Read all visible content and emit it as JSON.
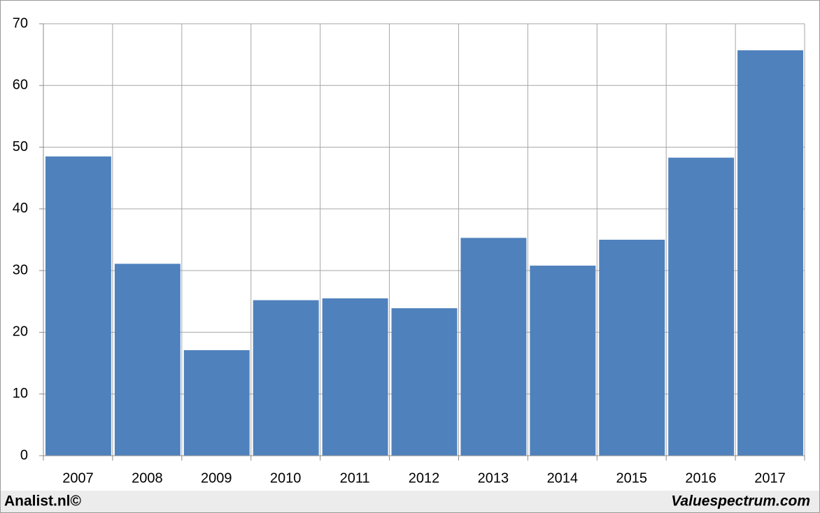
{
  "chart_data": {
    "type": "bar",
    "categories": [
      "2007",
      "2008",
      "2009",
      "2010",
      "2011",
      "2012",
      "2013",
      "2014",
      "2015",
      "2016",
      "2017"
    ],
    "values": [
      48.5,
      31.1,
      17.1,
      25.2,
      25.5,
      23.9,
      35.3,
      30.8,
      35.0,
      48.3,
      65.7
    ],
    "color": "#4f81bd",
    "ylim": [
      0,
      70
    ],
    "yticks": [
      0,
      10,
      20,
      30,
      40,
      50,
      60,
      70
    ],
    "grid": true,
    "credits": [
      "Analist.nl©",
      "Valuespectrum.com"
    ]
  }
}
